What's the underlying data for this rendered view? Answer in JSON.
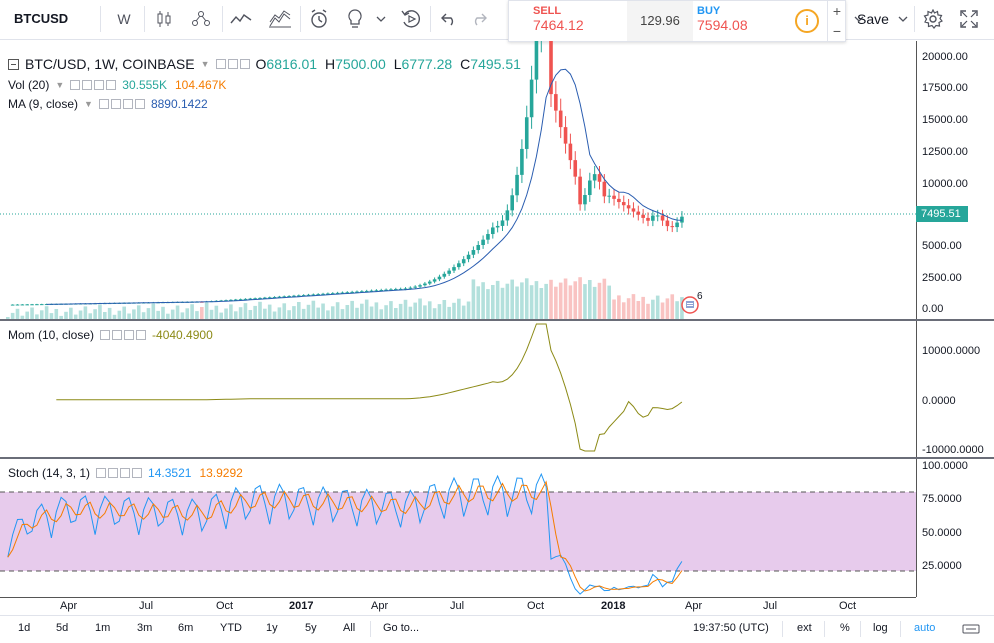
{
  "toolbar": {
    "symbol": "BTCUSD",
    "interval": "W",
    "save_label": "Save",
    "icons": [
      "candles-icon",
      "compare-icon",
      "indicators-icon",
      "financials-icon",
      "alert-icon",
      "ideas-icon",
      "replay-icon",
      "undo-icon",
      "redo-icon",
      "settings-icon",
      "fullscreen-icon"
    ]
  },
  "trade": {
    "sell_label": "SELL",
    "sell_value": "7464.12",
    "spread": "129.96",
    "buy_label": "BUY",
    "buy_value": "7594.08",
    "info_symbol": "i",
    "plus": "+",
    "minus": "−",
    "colors": {
      "sell": "#ef5350",
      "buy": "#2196f3",
      "info": "#f5a623"
    }
  },
  "main_legend": {
    "title": "BTC/USD, 1W, COINBASE",
    "o_label": "O",
    "o_value": "6816.01",
    "h_label": "H",
    "h_value": "7500.00",
    "l_label": "L",
    "l_value": "6777.28",
    "c_label": "C",
    "c_value": "7495.51"
  },
  "vol_legend": {
    "title": "Vol (20)",
    "v1": "30.555K",
    "v2": "104.467K"
  },
  "ma_legend": {
    "title": "MA (9, close)",
    "v1": "8890.1422"
  },
  "mom_legend": {
    "title": "Mom (10, close)",
    "v1": "-4040.4900"
  },
  "stoch_legend": {
    "title": "Stoch (14, 3, 1)",
    "v1": "14.3521",
    "v2": "13.9292"
  },
  "price_axis": [
    "20000.00",
    "17500.00",
    "15000.00",
    "12500.00",
    "10000.00",
    "5000.00",
    "2500.00",
    "0.00"
  ],
  "last_price": "7495.51",
  "mom_axis": [
    "10000.0000",
    "0.0000",
    "-10000.0000"
  ],
  "stoch_axis": [
    "100.0000",
    "75.0000",
    "50.0000",
    "25.0000"
  ],
  "event_count": "6",
  "time_axis": [
    {
      "label": "Apr",
      "bold": false
    },
    {
      "label": "Jul",
      "bold": false
    },
    {
      "label": "Oct",
      "bold": false
    },
    {
      "label": "2017",
      "bold": true
    },
    {
      "label": "Apr",
      "bold": false
    },
    {
      "label": "Jul",
      "bold": false
    },
    {
      "label": "Oct",
      "bold": false
    },
    {
      "label": "2018",
      "bold": true
    },
    {
      "label": "Apr",
      "bold": false
    },
    {
      "label": "Jul",
      "bold": false
    },
    {
      "label": "Oct",
      "bold": false
    }
  ],
  "bottom": {
    "ranges": [
      "1d",
      "5d",
      "1m",
      "3m",
      "6m",
      "YTD",
      "1y",
      "5y",
      "All"
    ],
    "goto": "Go to...",
    "clock": "19:37:50 (UTC)",
    "ext": "ext",
    "percent": "%",
    "log": "log",
    "auto": "auto"
  },
  "colors": {
    "up": "#26a69a",
    "down": "#ef5350",
    "ma": "#2a5db0",
    "mom": "#8c8a16",
    "stoch_k": "#2196f3",
    "stoch_d": "#f57c00",
    "stoch_band": "#e1bee7"
  }
}
